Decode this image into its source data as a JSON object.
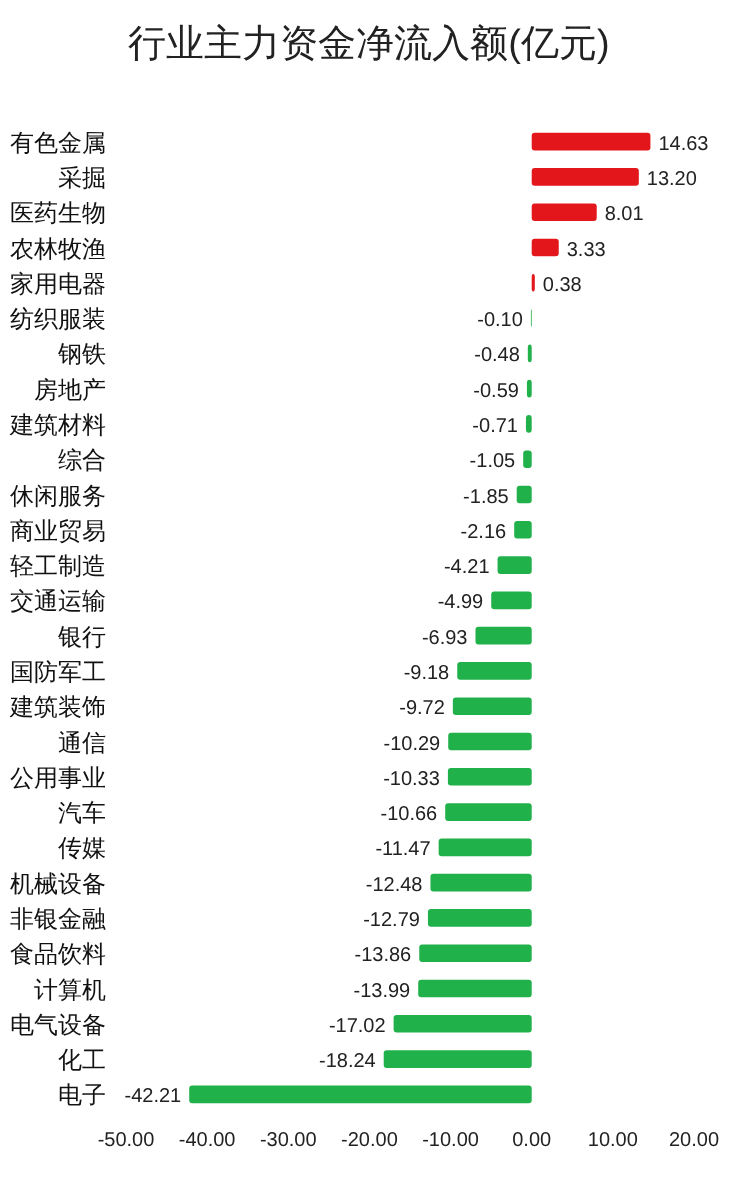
{
  "chart_data": {
    "type": "bar",
    "orientation": "horizontal",
    "title": "行业主力资金净流入额(亿元)",
    "categories": [
      "有色金属",
      "采掘",
      "医药生物",
      "农林牧渔",
      "家用电器",
      "纺织服装",
      "钢铁",
      "房地产",
      "建筑材料",
      "综合",
      "休闲服务",
      "商业贸易",
      "轻工制造",
      "交通运输",
      "银行",
      "国防军工",
      "建筑装饰",
      "通信",
      "公用事业",
      "汽车",
      "传媒",
      "机械设备",
      "非银金融",
      "食品饮料",
      "计算机",
      "电气设备",
      "化工",
      "电子"
    ],
    "values": [
      14.63,
      13.2,
      8.01,
      3.33,
      0.38,
      -0.1,
      -0.48,
      -0.59,
      -0.71,
      -1.05,
      -1.85,
      -2.16,
      -4.21,
      -4.99,
      -6.93,
      -9.18,
      -9.72,
      -10.29,
      -10.33,
      -10.66,
      -11.47,
      -12.48,
      -12.79,
      -13.86,
      -13.99,
      -17.02,
      -18.24,
      -42.21
    ],
    "value_labels": [
      "14.63",
      "13.20",
      "8.01",
      "3.33",
      "0.38",
      "-0.10",
      "-0.48",
      "-0.59",
      "-0.71",
      "-1.05",
      "-1.85",
      "-2.16",
      "-4.21",
      "-4.99",
      "-6.93",
      "-9.18",
      "-9.72",
      "-10.29",
      "-10.33",
      "-10.66",
      "-11.47",
      "-12.48",
      "-12.79",
      "-13.86",
      "-13.99",
      "-17.02",
      "-18.24",
      "-42.21"
    ],
    "colors": [
      "#e3161b",
      "#e3161b",
      "#e3161b",
      "#e3161b",
      "#e3161b",
      "#21b14b",
      "#21b14b",
      "#21b14b",
      "#21b14b",
      "#21b14b",
      "#21b14b",
      "#21b14b",
      "#21b14b",
      "#21b14b",
      "#21b14b",
      "#21b14b",
      "#21b14b",
      "#21b14b",
      "#21b14b",
      "#21b14b",
      "#21b14b",
      "#21b14b",
      "#21b14b",
      "#21b14b",
      "#21b14b",
      "#21b14b",
      "#21b14b",
      "#21b14b"
    ],
    "xlim": [
      -50,
      20
    ],
    "xticks": [
      {
        "value": -50,
        "label": "-50.00"
      },
      {
        "value": -40,
        "label": "-40.00"
      },
      {
        "value": -30,
        "label": "-30.00"
      },
      {
        "value": -20,
        "label": "-20.00"
      },
      {
        "value": -10,
        "label": "-10.00"
      },
      {
        "value": 0,
        "label": "0.00"
      },
      {
        "value": 10,
        "label": "10.00"
      },
      {
        "value": 20,
        "label": "20.00"
      }
    ],
    "grid": false
  }
}
